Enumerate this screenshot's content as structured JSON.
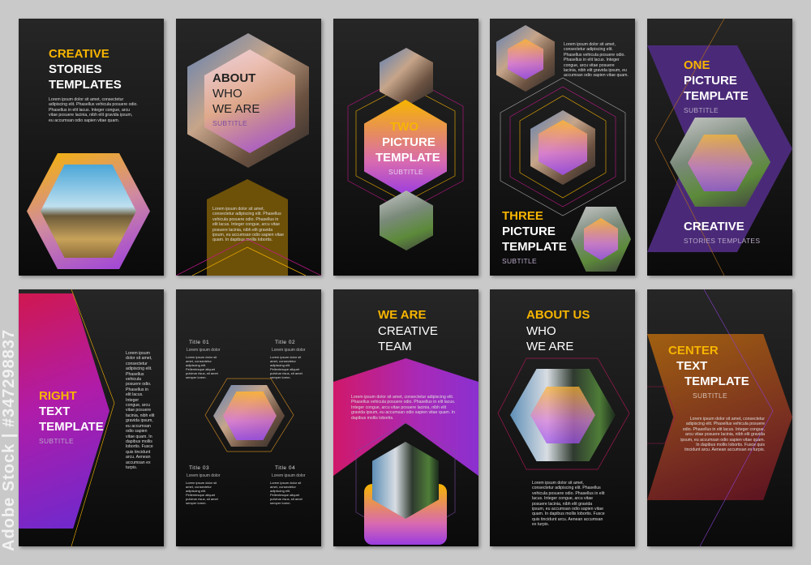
{
  "watermark": "Adobe Stock | #347298837",
  "colors": {
    "accent_yellow": "#f7b500",
    "purple": "#4a2a78",
    "magenta": "#c2188a",
    "background": "#c9c9c9",
    "card": "#141414"
  },
  "lorem_short": "Lorem ipsum dolor sit amet, consectetur adipiscing elit. Phasellus vehicula posuere odio. Phasellus in elit lacus. Integer congue, arcu vitae posuere lacinia, nibh elit gravida ipsum, eu accumsan odio sapien vitae quam.",
  "lorem_long": "Lorem ipsum dolor sit amet, consectetur adipiscing elit. Phasellus vehicula posuere odio. Phasellus in elit lacus. Integer congue, arcu vitae posuere lacinia, nibh elit gravida ipsum, eu accumsan odio sapien vitae quam. In dapibus mollis lobortis.",
  "lorem_full": "Lorem ipsum dolor sit amet, consectetur adipiscing elit. Phasellus vehicula posuere odio. Phasellus in elit lacus. Integer congue, arcu vitae posuere lacinia, nibh elit gravida ipsum, eu accumsan odio sapien vitae quam. In dapibus mollis lobortis. Fusce quis tincidunt arcu. Aenean accumsan ex turpis.",
  "lorem_tiny": "Lorem ipsum dolor sit amet, consectetur adipiscing elit. Pellentesque aliquet pulvinar risus, sit amet semper lorem.",
  "cards": [
    {
      "l1": "CREATIVE",
      "l2": "STORIES",
      "l3": "TEMPLATES"
    },
    {
      "l1": "ABOUT",
      "l2": "WHO",
      "l3": "WE ARE",
      "sub": "SUBTITLE"
    },
    {
      "l1": "TWO",
      "l2": "PICTURE",
      "l3": "TEMPLATE",
      "sub": "SUBTITLE"
    },
    {
      "l1": "THREE",
      "l2": "PICTURE",
      "l3": "TEMPLATE",
      "sub": "SUBTITLE"
    },
    {
      "l1": "ONE",
      "l2": "PICTURE",
      "l3": "TEMPLATE",
      "sub": "SUBTITLE",
      "l4": "CREATIVE",
      "sub2": "STORIES TEMPLATES"
    },
    {
      "l1": "RIGHT",
      "l2": "TEXT",
      "l3": "TEMPLATE",
      "sub": "SUBTITLE"
    },
    {
      "titles": [
        "Title 01",
        "Title 02",
        "Title 03",
        "Title 04"
      ],
      "subtitle": "Lorem ipsum dolor"
    },
    {
      "l1": "WE ARE",
      "l2": "CREATIVE",
      "l3": "TEAM"
    },
    {
      "l1": "ABOUT US",
      "l2": "WHO",
      "l3": "WE ARE"
    },
    {
      "l1": "CENTER",
      "l2": "TEXT",
      "l3": "TEMPLATE",
      "sub": "SUBTITLE"
    }
  ]
}
